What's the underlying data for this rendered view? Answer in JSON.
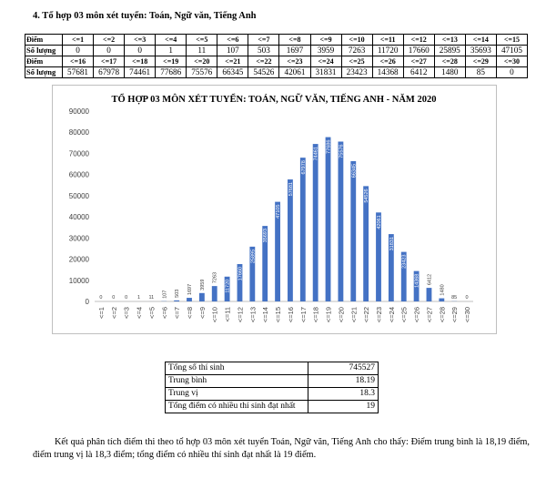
{
  "heading": "4. Tổ hợp 03 môn xét tuyển: Toán, Ngữ văn, Tiếng Anh",
  "table": {
    "label_score": "Điểm",
    "label_count": "Số lượng",
    "row1_scores": [
      "<=1",
      "<=2",
      "<=3",
      "<=4",
      "<=5",
      "<=6",
      "<=7",
      "<=8",
      "<=9",
      "<=10",
      "<=11",
      "<=12",
      "<=13",
      "<=14",
      "<=15"
    ],
    "row1_counts": [
      "0",
      "0",
      "0",
      "1",
      "11",
      "107",
      "503",
      "1697",
      "3959",
      "7263",
      "11720",
      "17660",
      "25895",
      "35693",
      "47105"
    ],
    "row2_scores": [
      "<=16",
      "<=17",
      "<=18",
      "<=19",
      "<=20",
      "<=21",
      "<=22",
      "<=23",
      "<=24",
      "<=25",
      "<=26",
      "<=27",
      "<=28",
      "<=29",
      "<=30"
    ],
    "row2_counts": [
      "57681",
      "67978",
      "74461",
      "77686",
      "75576",
      "66345",
      "54526",
      "42061",
      "31831",
      "23423",
      "14368",
      "6412",
      "1480",
      "85",
      "0"
    ]
  },
  "chart_data": {
    "type": "bar",
    "title": "TỔ HỢP 03 MÔN XÉT TUYỂN: TOÁN, NGỮ VĂN, TIẾNG ANH - NĂM 2020",
    "categories": [
      "<=1",
      "<=2",
      "<=3",
      "<=4",
      "<=5",
      "<=6",
      "<=7",
      "<=8",
      "<=9",
      "<=10",
      "<=11",
      "<=12",
      "<=13",
      "<=14",
      "<=15",
      "<=16",
      "<=17",
      "<=18",
      "<=19",
      "<=20",
      "<=21",
      "<=22",
      "<=23",
      "<=24",
      "<=25",
      "<=26",
      "<=27",
      "<=28",
      "<=29",
      "<=30"
    ],
    "values": [
      0,
      0,
      0,
      1,
      11,
      107,
      503,
      1697,
      3959,
      7263,
      11720,
      17660,
      25895,
      35693,
      47105,
      57681,
      67978,
      74461,
      77686,
      75576,
      66345,
      54526,
      42061,
      31831,
      23423,
      14368,
      6412,
      1480,
      85,
      0
    ],
    "ylim": [
      0,
      90000
    ],
    "yticks": [
      0,
      10000,
      20000,
      30000,
      40000,
      50000,
      60000,
      70000,
      80000,
      90000
    ],
    "grid": false,
    "legend": "none",
    "bar_color": "#4472c4",
    "xlabel": "",
    "ylabel": ""
  },
  "stats": [
    {
      "label": "Tổng số thí sinh",
      "value": "745527"
    },
    {
      "label": "Trung bình",
      "value": "18.19"
    },
    {
      "label": "Trung vị",
      "value": "18.3"
    },
    {
      "label": "Tổng điểm có nhiều thí sinh đạt nhất",
      "value": "19"
    }
  ],
  "conclusion": "Kết quả phân tích điểm thi theo tổ hợp 03 môn xét tuyển Toán, Ngữ văn, Tiếng Anh cho thấy: Điểm trung bình là 18,19 điểm, điểm trung vị là 18,3 điểm; tổng điểm có nhiều thí sinh đạt nhất là 19 điểm."
}
